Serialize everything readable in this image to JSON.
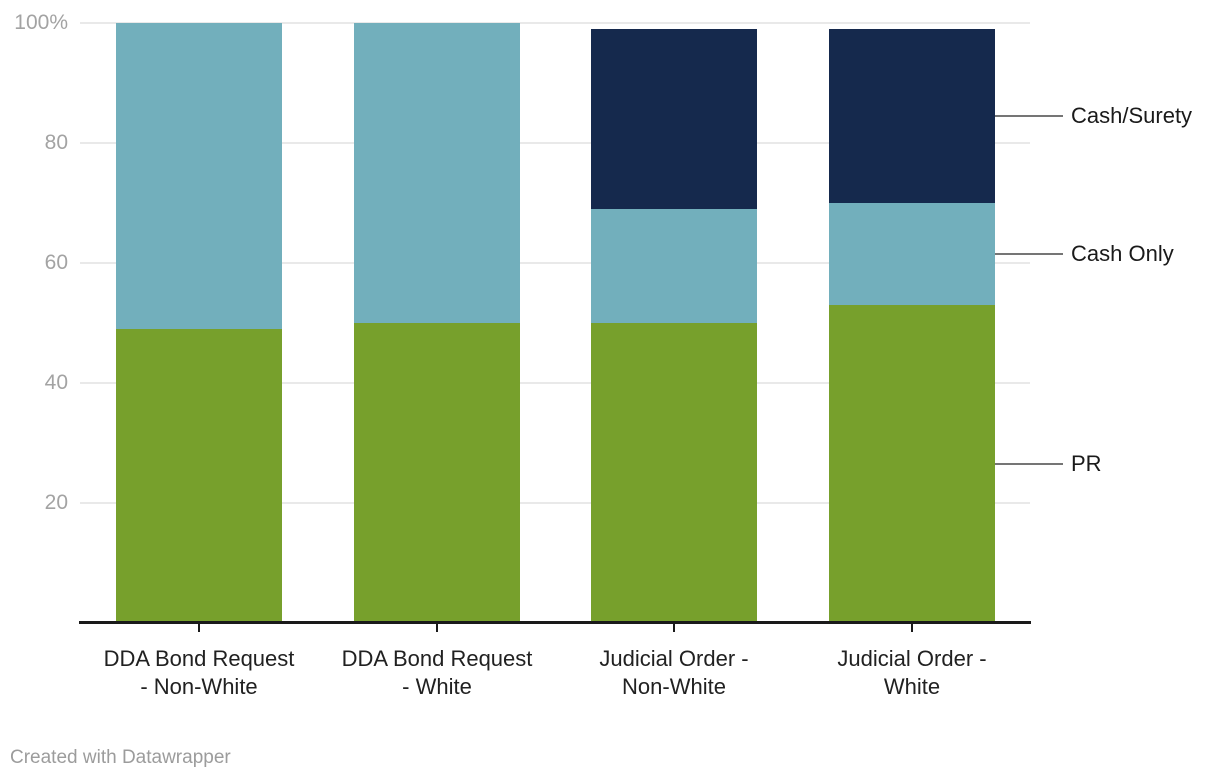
{
  "chart_data": {
    "type": "bar",
    "stacked": true,
    "unit": "%",
    "categories": [
      {
        "label": "DDA Bond Request - Non-White",
        "lines": [
          "DDA Bond Request",
          "- Non-White"
        ]
      },
      {
        "label": "DDA Bond Request - White",
        "lines": [
          "DDA Bond Request",
          "- White"
        ]
      },
      {
        "label": "Judicial Order - Non-White",
        "lines": [
          "Judicial Order -",
          "Non-White"
        ]
      },
      {
        "label": "Judicial Order - White",
        "lines": [
          "Judicial Order -",
          "White"
        ]
      }
    ],
    "series": [
      {
        "name": "PR",
        "color": "#77a02c",
        "values": [
          49,
          50,
          50,
          53
        ]
      },
      {
        "name": "Cash Only",
        "color": "#72afbc",
        "values": [
          51,
          50,
          19,
          17
        ]
      },
      {
        "name": "Cash/Surety",
        "color": "#15294d",
        "values": [
          0,
          0,
          30,
          29
        ]
      }
    ],
    "ylim": [
      0,
      100
    ],
    "yticks": [
      20,
      40,
      60,
      80,
      100
    ],
    "ytick_labels": [
      "20",
      "40",
      "60",
      "80",
      "100%"
    ],
    "grid": true,
    "legend_position": "right-direct-labels"
  },
  "colors": {
    "background": "#ffffff",
    "axis": "#1a1a1a",
    "gridline": "#e9e9e9",
    "tick_label": "#a3a3a3",
    "category_label": "#212121",
    "series_label": "#1a1a1a",
    "connector": "#757575",
    "footer": "#9c9c9c"
  },
  "footer": {
    "attribution": "Created with Datawrapper"
  }
}
